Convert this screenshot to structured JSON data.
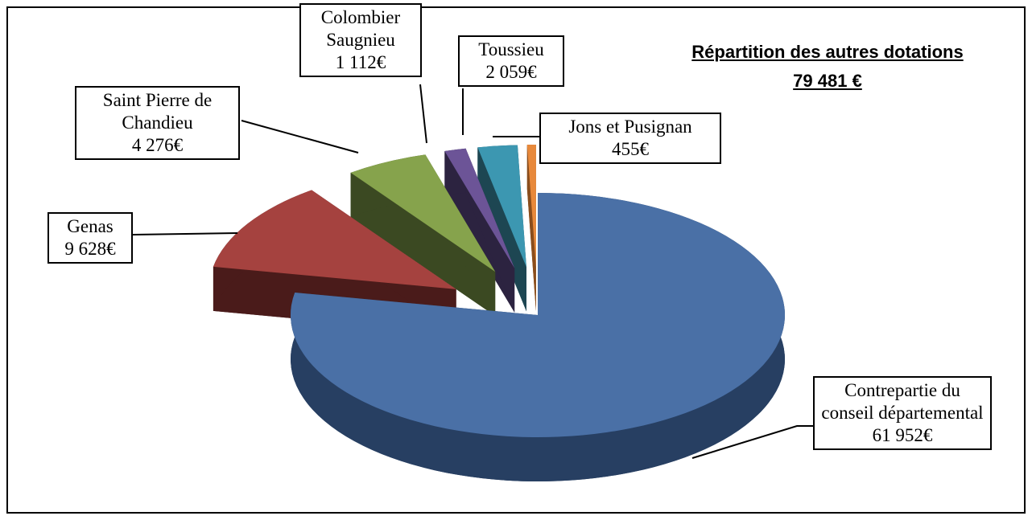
{
  "chart_data": {
    "type": "pie",
    "title": "Répartition des autres dotations",
    "subtitle": "79 481 €",
    "categories": [
      "Contrepartie du conseil départemental",
      "Genas",
      "Saint Pierre de Chandieu",
      "Colombier Saugnieu",
      "Toussieu",
      "Jons et Pusignan"
    ],
    "values": [
      61952,
      9628,
      4276,
      1112,
      2059,
      455
    ],
    "value_labels": [
      "61 952€",
      "9 628€",
      "4 276€",
      "1 112€",
      "2 059€",
      "455€"
    ],
    "colors": [
      "#4a70a6",
      "#a5423f",
      "#86a34c",
      "#6c5497",
      "#3c97b1",
      "#e8893b"
    ],
    "side_colors": [
      "#273f62",
      "#4a1b1a",
      "#3b4922",
      "#2c2340",
      "#1d4652",
      "#8a4d1c"
    ]
  }
}
